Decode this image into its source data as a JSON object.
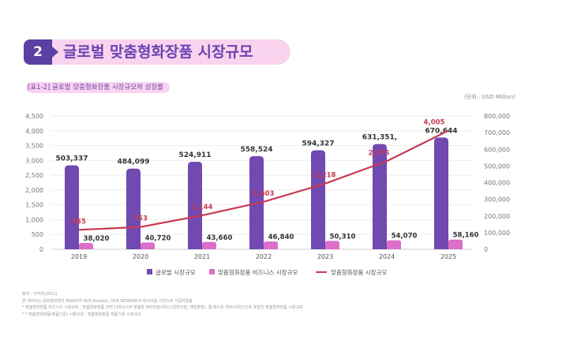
{
  "header": {
    "number": "2",
    "title": "글로벌 맞춤형화장품 시장규모"
  },
  "table_caption": "[표1-2] 글로벌 맞춤형화장품 시장규모와 성장률",
  "unit": "(단위 : USD Million)",
  "notes": [
    "출처 : 식약처(2021)",
    "본 데이터는 글로벌마켓의 INSIGHT ACE Analytic, QYR RESEARCH 데이터를 기반으로 가공하였음",
    "* 맞춤형화장품 비즈니스 시장규모 : 맞춤형화장품 관련 디바이스와 맞춤형 뷰티컨설서비스(일반상담, 체험확장), 웹·매스트 카트/디지인신호 포함한 맞춤형화장품 시장규모",
    "* * 맞춤형화장품(제품기준) 시장규모 : 맞춤형화장품 제품기준 시장규모"
  ],
  "colors": {
    "global": "#7049b1",
    "business": "#db6fc9",
    "line": "#c93a52",
    "badge": "#5b3fa3",
    "header_bg": "#fad3ee"
  },
  "chart_data": {
    "type": "bar+line",
    "categories": [
      "2019",
      "2020",
      "2021",
      "2022",
      "2023",
      "2024",
      "2025"
    ],
    "left_axis": {
      "ylim": [
        0,
        4500
      ],
      "ticks": [
        "0",
        "500",
        "1,000",
        "1,500",
        "2,000",
        "2,500",
        "3,000",
        "3,500",
        "4,000",
        "4,500"
      ]
    },
    "right_axis": {
      "ylim": [
        0,
        800000
      ],
      "ticks": [
        "0",
        "100,000",
        "200,000",
        "300,000",
        "400,000",
        "500,000",
        "600,000",
        "700,000",
        "800,000"
      ]
    },
    "grid": true,
    "legend_placement": "bottom",
    "series": [
      {
        "name": "글로벌 시장규모",
        "type": "bar",
        "axis": "right",
        "values": [
          503337,
          484099,
          524911,
          558524,
          594327,
          631351,
          670644
        ],
        "labels": [
          "503,337",
          "484,099",
          "524,911",
          "558,524",
          "594,327",
          "631,351,",
          "670,644"
        ]
      },
      {
        "name": "맞춤형화장품 비즈니스 시장규모",
        "type": "bar",
        "axis": "right",
        "values": [
          38020,
          40720,
          43660,
          46840,
          50310,
          54070,
          58160
        ],
        "labels": [
          "38,020",
          "40,720",
          "43,660",
          "46,840",
          "50,310",
          "54,070",
          "58,160"
        ]
      },
      {
        "name": "맞춤형화장품 시장규모",
        "type": "line",
        "axis": "left",
        "values": [
          655,
          753,
          1144,
          1603,
          2218,
          2975,
          4005
        ],
        "labels": [
          "655",
          "753",
          "1,144",
          "1,603",
          "2,218",
          "2,975",
          "4,005"
        ]
      }
    ]
  }
}
